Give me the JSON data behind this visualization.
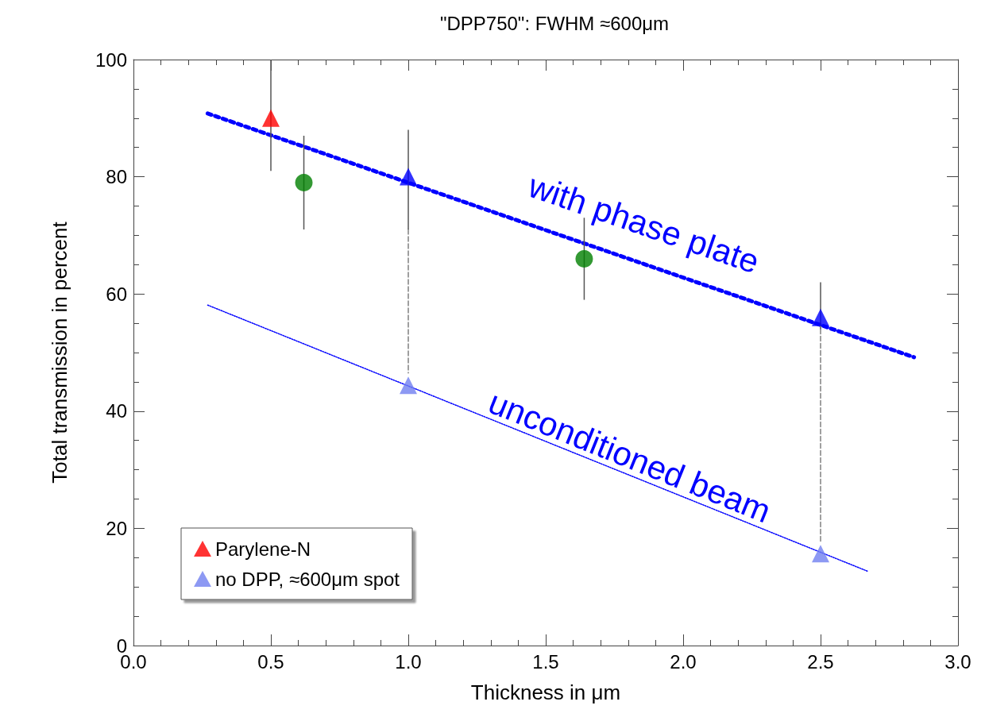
{
  "chart_data": {
    "type": "scatter",
    "title": "\"DPP750\": FWHM ≈600μm",
    "xlabel": "Thickness in μm",
    "ylabel": "Total transmission in percent",
    "xlim": [
      0,
      3
    ],
    "xticks": [
      {
        "value": 0,
        "label": "0.0"
      },
      0.5,
      {
        "value": 1,
        "label": "1.0"
      },
      1.5,
      {
        "value": 2,
        "label": "2.0"
      },
      2.5,
      {
        "value": 3,
        "label": "3.0"
      }
    ],
    "ylim": [
      0,
      100
    ],
    "yticks": [
      0,
      20,
      40,
      60,
      80,
      100
    ],
    "grid": false,
    "legend": "bottom left",
    "annotations": [
      "with phase plate",
      "unconditioned beam"
    ],
    "series": [
      {
        "type": "line",
        "color": "#0000ff",
        "line_style": "dotted",
        "marker": "none",
        "x": [
          0.27,
          2.84
        ],
        "values": [
          90.8,
          49.2
        ]
      },
      {
        "type": "line",
        "color": "#0000ff",
        "line_style": "dotted",
        "marker": "none",
        "x": [
          0.27,
          2.67
        ],
        "values": [
          58.1,
          12.7
        ]
      },
      {
        "type": "line",
        "color": "#808080",
        "line_style": "dashed",
        "marker": "none",
        "x": [
          1,
          1
        ],
        "values": [
          71,
          46.5
        ]
      },
      {
        "type": "line",
        "color": "#808080",
        "line_style": "dashed",
        "marker": "none",
        "x": [
          2.5,
          2.5
        ],
        "values": [
          54,
          17.8
        ]
      },
      {
        "name": "Parylene-N",
        "color": "#ff0000",
        "marker": "triangle",
        "x": [
          0.5
        ],
        "values": [
          90
        ],
        "errors": [
          [
            81,
            100
          ]
        ]
      },
      {
        "color": "#0000ff",
        "marker": "triangle",
        "x": [
          1,
          2.5
        ],
        "values": [
          80,
          56
        ],
        "errors": [
          [
            71,
            88
          ],
          [
            54,
            62
          ]
        ]
      },
      {
        "color": "#008000",
        "marker": "circle",
        "x": [
          0.62,
          1.64
        ],
        "values": [
          79,
          66
        ],
        "errors": [
          [
            71,
            87
          ],
          [
            59,
            73
          ]
        ]
      },
      {
        "name": "no DPP, ≈600μm spot",
        "color": "#7080f0",
        "marker": "triangle",
        "x": [
          1,
          2.5
        ],
        "values": [
          44.4,
          15.7
        ]
      }
    ]
  }
}
